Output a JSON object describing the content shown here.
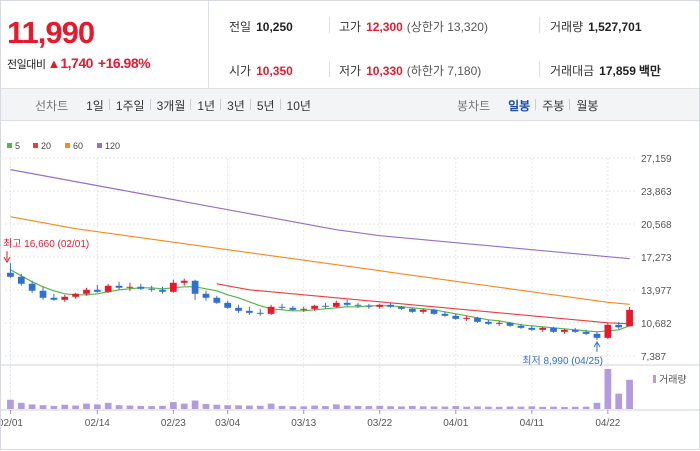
{
  "quote": {
    "price": "11,990",
    "change_label": "전일대비",
    "change_arrow": "▲",
    "change_amount": "1,740",
    "change_percent": "+16.98%",
    "stats": {
      "prev_close": {
        "label": "전일",
        "value": "10,250"
      },
      "high": {
        "label": "고가",
        "value": "12,300",
        "sub": "(상한가 13,320)"
      },
      "volume": {
        "label": "거래량",
        "value": "1,527,701"
      },
      "open": {
        "label": "시가",
        "value": "10,350"
      },
      "low": {
        "label": "저가",
        "value": "10,330",
        "sub": "(하한가 7,180)"
      },
      "amount": {
        "label": "거래대금",
        "value": "17,859",
        "unit": "백만"
      }
    }
  },
  "toolbar": {
    "line_title": "선차트",
    "line_periods": [
      "1일",
      "1주일",
      "3개월",
      "1년",
      "3년",
      "5년",
      "10년"
    ],
    "candle_title": "봉차트",
    "candle_periods": [
      "일봉",
      "주봉",
      "월봉"
    ],
    "candle_active": "일봉"
  },
  "colors": {
    "up": "#e8192c",
    "down": "#2f6fd6",
    "ma5": "#55b64a",
    "ma20": "#e8413c",
    "ma60": "#f28c1e",
    "ma120": "#9a6fc4",
    "volume": "#b49be0"
  },
  "chart_data": {
    "type": "candlestick",
    "moving_averages": [
      {
        "name": "5",
        "color": "#55b64a"
      },
      {
        "name": "20",
        "color": "#e8413c"
      },
      {
        "name": "60",
        "color": "#f28c1e"
      },
      {
        "name": "120",
        "color": "#9a6fc4"
      }
    ],
    "y_ticks": [
      "27,159",
      "23,863",
      "20,568",
      "17,273",
      "13,977",
      "10,682",
      "7,387"
    ],
    "ylim": [
      7387,
      27159
    ],
    "x_ticks": [
      "02/01",
      "02/14",
      "02/23",
      "03/04",
      "03/13",
      "03/22",
      "04/01",
      "04/11",
      "04/22"
    ],
    "annotations": {
      "high": {
        "text": "최고 16,660 (02/01)",
        "value": 16660
      },
      "low": {
        "text": "최저 8,990 (04/25)",
        "value": 8990
      }
    },
    "volume_label": "거래량",
    "candles": [
      {
        "o": 15700,
        "h": 16660,
        "l": 15200,
        "c": 15300
      },
      {
        "o": 15300,
        "h": 15600,
        "l": 14400,
        "c": 14600
      },
      {
        "o": 14600,
        "h": 14900,
        "l": 13700,
        "c": 13900
      },
      {
        "o": 13900,
        "h": 14300,
        "l": 13000,
        "c": 13200
      },
      {
        "o": 13200,
        "h": 13600,
        "l": 12900,
        "c": 13000
      },
      {
        "o": 13000,
        "h": 13500,
        "l": 12800,
        "c": 13300
      },
      {
        "o": 13300,
        "h": 13700,
        "l": 13100,
        "c": 13600
      },
      {
        "o": 13600,
        "h": 14200,
        "l": 13400,
        "c": 14000
      },
      {
        "o": 14000,
        "h": 14500,
        "l": 13700,
        "c": 13800
      },
      {
        "o": 13800,
        "h": 14600,
        "l": 13700,
        "c": 14400
      },
      {
        "o": 14400,
        "h": 14800,
        "l": 14000,
        "c": 14200
      },
      {
        "o": 14200,
        "h": 14700,
        "l": 13900,
        "c": 14300
      },
      {
        "o": 14300,
        "h": 14600,
        "l": 14000,
        "c": 14100
      },
      {
        "o": 14100,
        "h": 14400,
        "l": 13800,
        "c": 14000
      },
      {
        "o": 14000,
        "h": 14300,
        "l": 13600,
        "c": 13800
      },
      {
        "o": 13800,
        "h": 15000,
        "l": 13700,
        "c": 14700
      },
      {
        "o": 14700,
        "h": 15100,
        "l": 14400,
        "c": 14900
      },
      {
        "o": 14900,
        "h": 15000,
        "l": 13000,
        "c": 13600
      },
      {
        "o": 13600,
        "h": 13900,
        "l": 12900,
        "c": 13200
      },
      {
        "o": 13200,
        "h": 13400,
        "l": 12600,
        "c": 12700
      },
      {
        "o": 12700,
        "h": 12900,
        "l": 12100,
        "c": 12200
      },
      {
        "o": 12200,
        "h": 12500,
        "l": 11700,
        "c": 11900
      },
      {
        "o": 11900,
        "h": 12300,
        "l": 11500,
        "c": 11700
      },
      {
        "o": 11700,
        "h": 12100,
        "l": 11400,
        "c": 11600
      },
      {
        "o": 11600,
        "h": 12500,
        "l": 11500,
        "c": 12300
      },
      {
        "o": 12300,
        "h": 12600,
        "l": 12000,
        "c": 12200
      },
      {
        "o": 12200,
        "h": 12400,
        "l": 11900,
        "c": 12000
      },
      {
        "o": 12000,
        "h": 12300,
        "l": 11800,
        "c": 12100
      },
      {
        "o": 12100,
        "h": 12500,
        "l": 11900,
        "c": 12400
      },
      {
        "o": 12400,
        "h": 12700,
        "l": 12100,
        "c": 12300
      },
      {
        "o": 12300,
        "h": 12900,
        "l": 12200,
        "c": 12700
      },
      {
        "o": 12700,
        "h": 13000,
        "l": 12300,
        "c": 12500
      },
      {
        "o": 12500,
        "h": 12700,
        "l": 12200,
        "c": 12400
      },
      {
        "o": 12400,
        "h": 12600,
        "l": 12100,
        "c": 12300
      },
      {
        "o": 12300,
        "h": 12600,
        "l": 12100,
        "c": 12500
      },
      {
        "o": 12500,
        "h": 12700,
        "l": 12200,
        "c": 12300
      },
      {
        "o": 12300,
        "h": 12400,
        "l": 12000,
        "c": 12100
      },
      {
        "o": 12100,
        "h": 12200,
        "l": 11700,
        "c": 11800
      },
      {
        "o": 11800,
        "h": 12100,
        "l": 11600,
        "c": 12000
      },
      {
        "o": 12000,
        "h": 12100,
        "l": 11500,
        "c": 11600
      },
      {
        "o": 11600,
        "h": 11800,
        "l": 11300,
        "c": 11400
      },
      {
        "o": 11400,
        "h": 11600,
        "l": 11000,
        "c": 11100
      },
      {
        "o": 11100,
        "h": 11400,
        "l": 10900,
        "c": 11200
      },
      {
        "o": 11200,
        "h": 11300,
        "l": 10700,
        "c": 10800
      },
      {
        "o": 10800,
        "h": 11000,
        "l": 10500,
        "c": 10600
      },
      {
        "o": 10600,
        "h": 10900,
        "l": 10400,
        "c": 10700
      },
      {
        "o": 10700,
        "h": 10800,
        "l": 10300,
        "c": 10400
      },
      {
        "o": 10400,
        "h": 10600,
        "l": 10100,
        "c": 10200
      },
      {
        "o": 10200,
        "h": 10400,
        "l": 9900,
        "c": 10000
      },
      {
        "o": 10000,
        "h": 10300,
        "l": 9800,
        "c": 10200
      },
      {
        "o": 10200,
        "h": 10300,
        "l": 9700,
        "c": 9800
      },
      {
        "o": 9800,
        "h": 10100,
        "l": 9600,
        "c": 10000
      },
      {
        "o": 10000,
        "h": 10200,
        "l": 9700,
        "c": 9800
      },
      {
        "o": 9800,
        "h": 10000,
        "l": 9500,
        "c": 9600
      },
      {
        "o": 9600,
        "h": 9800,
        "l": 8990,
        "c": 9200
      },
      {
        "o": 9200,
        "h": 10700,
        "l": 9100,
        "c": 10500
      },
      {
        "o": 10500,
        "h": 10800,
        "l": 10100,
        "c": 10250
      },
      {
        "o": 10350,
        "h": 12300,
        "l": 10330,
        "c": 11990
      }
    ],
    "ma": {
      "ma5": [
        16000,
        15400,
        14800,
        14300,
        13900,
        13600,
        13500,
        13500,
        13600,
        13800,
        14000,
        14100,
        14200,
        14200,
        14100,
        14200,
        14300,
        14300,
        14100,
        13900,
        13500,
        13200,
        12800,
        12400,
        12100,
        12000,
        11900,
        11900,
        12000,
        12100,
        12200,
        12300,
        12300,
        12400,
        12400,
        12400,
        12300,
        12200,
        12100,
        12000,
        11800,
        11600,
        11400,
        11200,
        11000,
        10900,
        10700,
        10500,
        10400,
        10300,
        10200,
        10100,
        10000,
        9900,
        9800,
        9900,
        10000,
        10400
      ],
      "ma20": [
        null,
        null,
        null,
        null,
        null,
        null,
        null,
        null,
        null,
        null,
        null,
        null,
        null,
        null,
        null,
        null,
        null,
        null,
        null,
        14600,
        14400,
        14200,
        14000,
        13900,
        13800,
        13700,
        13600,
        13500,
        13400,
        13300,
        13200,
        13100,
        13000,
        12900,
        12800,
        12700,
        12600,
        12500,
        12400,
        12300,
        12200,
        12100,
        12000,
        11900,
        11800,
        11700,
        11600,
        11500,
        11400,
        11300,
        11200,
        11100,
        11000,
        10900,
        10800,
        10700,
        10650,
        10600
      ],
      "ma60": [
        21300,
        21100,
        20900,
        20700,
        20500,
        20300,
        20100,
        19950,
        19800,
        19650,
        19500,
        19350,
        19200,
        19050,
        18900,
        18750,
        18600,
        18450,
        18300,
        18150,
        18000,
        17850,
        17700,
        17550,
        17400,
        17250,
        17100,
        16950,
        16800,
        16650,
        16500,
        16350,
        16200,
        16050,
        15900,
        15750,
        15600,
        15450,
        15300,
        15150,
        15000,
        14850,
        14700,
        14550,
        14400,
        14250,
        14100,
        13950,
        13800,
        13650,
        13500,
        13350,
        13200,
        13050,
        12900,
        12750,
        12650,
        12550
      ],
      "ma120": [
        26000,
        25800,
        25600,
        25400,
        25200,
        25000,
        24800,
        24600,
        24400,
        24200,
        24000,
        23800,
        23600,
        23400,
        23200,
        23000,
        22800,
        22600,
        22400,
        22200,
        22000,
        21800,
        21600,
        21400,
        21200,
        21000,
        20800,
        20600,
        20400,
        20200,
        20000,
        19850,
        19700,
        19550,
        19400,
        19300,
        19200,
        19100,
        19000,
        18900,
        18800,
        18700,
        18600,
        18500,
        18400,
        18300,
        18200,
        18100,
        18000,
        17900,
        17800,
        17700,
        17600,
        17500,
        17400,
        17300,
        17200,
        17100
      ]
    },
    "volume": [
      120,
      80,
      60,
      50,
      40,
      55,
      45,
      70,
      60,
      80,
      50,
      45,
      40,
      38,
      42,
      90,
      70,
      110,
      65,
      55,
      50,
      48,
      45,
      42,
      70,
      40,
      36,
      35,
      45,
      38,
      60,
      45,
      40,
      38,
      42,
      36,
      34,
      40,
      35,
      33,
      32,
      38,
      30,
      34,
      30,
      28,
      32,
      30,
      35,
      28,
      30,
      27,
      29,
      30,
      80,
      520,
      200,
      380
    ]
  }
}
